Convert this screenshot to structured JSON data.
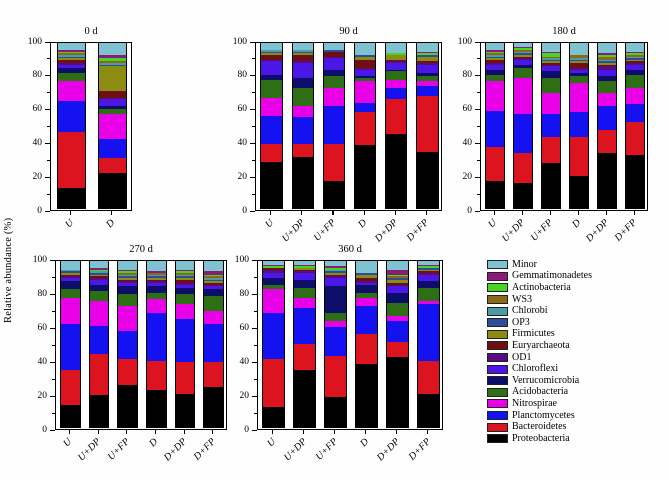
{
  "figure": {
    "ylabel": "Relative abundance (%)"
  },
  "chart_data": {
    "type": "bar",
    "stacked": true,
    "grid": false,
    "ylabel": "Relative abundance (%)",
    "ylim": [
      0,
      100
    ],
    "yticks": [
      0,
      20,
      40,
      60,
      80,
      100
    ],
    "yticks_minor": [
      10,
      30,
      50,
      70,
      90
    ],
    "legend_position": "bottom-right",
    "series_bottom_to_top": [
      "Proteobacteria",
      "Bacteroidetes",
      "Planctomycetes",
      "Nitrospirae",
      "Acidobacteria",
      "Verrucomicrobia",
      "Chloroflexi",
      "OD1",
      "Euryarchaeota",
      "Firmicutes",
      "OP3",
      "Chlorobi",
      "WS3",
      "Actinobacteria",
      "Gemmatimonadetes",
      "Minor"
    ],
    "legend_top_to_bottom": [
      "Minor",
      "Gemmatimonadetes",
      "Actinobacteria",
      "WS3",
      "Chlorobi",
      "OP3",
      "Firmicutes",
      "Euryarchaeota",
      "OD1",
      "Chloroflexi",
      "Verrucomicrobia",
      "Acidobacteria",
      "Nitrospirae",
      "Planctomycetes",
      "Bacteroidetes",
      "Proteobacteria"
    ],
    "colors": {
      "Proteobacteria": "#000000",
      "Bacteroidetes": "#dc1420",
      "Planctomycetes": "#1512f2",
      "Nitrospirae": "#e800e6",
      "Acidobacteria": "#2e6e15",
      "Verrucomicrobia": "#0d0d6a",
      "Chloroflexi": "#4a17e6",
      "OD1": "#5a0a82",
      "Euryarchaeota": "#6e1012",
      "Firmicutes": "#8c8c12",
      "OP3": "#2c4c9c",
      "Chlorobi": "#4d9ba6",
      "WS3": "#8a6a15",
      "Actinobacteria": "#46d621",
      "Gemmatimonadetes": "#8c1a78",
      "Minor": "#7fc3d3"
    },
    "panels": [
      {
        "title": "0 d",
        "bars": [
          {
            "label": "U",
            "values": [
              12,
              34,
              19,
              12,
              5,
              3,
              2,
              1,
              2,
              1,
              1,
              1,
              1,
              1,
              1,
              4
            ]
          },
          {
            "label": "D",
            "values": [
              21,
              9,
              12,
              15,
              3,
              2,
              4,
              1,
              4,
              15,
              1,
              1,
              1,
              2,
              2,
              7
            ]
          }
        ]
      },
      {
        "title": "90 d",
        "bars": [
          {
            "label": "U",
            "values": [
              28,
              11,
              17,
              11,
              11,
              3,
              8,
              1,
              3,
              1,
              1,
              1,
              0,
              0,
              0,
              4
            ]
          },
          {
            "label": "U+DP",
            "values": [
              31,
              8,
              16,
              7,
              11,
              6,
              9,
              1,
              4,
              1,
              1,
              1,
              0,
              0,
              0,
              4
            ]
          },
          {
            "label": "U+FP",
            "values": [
              16,
              23,
              23,
              11,
              7,
              4,
              7,
              1,
              3,
              0,
              1,
              0,
              0,
              0,
              0,
              4
            ]
          },
          {
            "label": "D",
            "values": [
              38,
              20,
              6,
              13,
              2,
              1,
              4,
              1,
              5,
              2,
              1,
              0,
              0,
              0,
              0,
              7
            ]
          },
          {
            "label": "D+DP",
            "values": [
              45,
              21,
              7,
              5,
              5,
              1,
              4,
              1,
              1,
              3,
              0,
              0,
              0,
              1,
              0,
              6
            ]
          },
          {
            "label": "D+FP",
            "values": [
              34,
              34,
              6,
              3,
              3,
              2,
              5,
              1,
              1,
              3,
              1,
              0,
              0,
              1,
              1,
              5
            ]
          }
        ]
      },
      {
        "title": "180 d",
        "bars": [
          {
            "label": "U",
            "values": [
              16,
              21,
              22,
              18,
              4,
              3,
              3,
              1,
              2,
              1,
              1,
              1,
              1,
              1,
              1,
              4
            ]
          },
          {
            "label": "U+DP",
            "values": [
              15,
              18,
              24,
              22,
              6,
              2,
              3,
              1,
              1,
              1,
              1,
              1,
              1,
              1,
              1,
              2
            ]
          },
          {
            "label": "U+FP",
            "values": [
              27,
              16,
              14,
              13,
              9,
              4,
              3,
              1,
              1,
              1,
              1,
              1,
              1,
              2,
              1,
              5
            ]
          },
          {
            "label": "D",
            "values": [
              19,
              24,
              15,
              18,
              4,
              2,
              2,
              1,
              3,
              1,
              1,
              1,
              2,
              0,
              0,
              7
            ]
          },
          {
            "label": "D+DP",
            "values": [
              33,
              14,
              15,
              8,
              7,
              3,
              4,
              2,
              1,
              1,
              1,
              1,
              2,
              1,
              1,
              6
            ]
          },
          {
            "label": "D+FP",
            "values": [
              32,
              20,
              11,
              10,
              8,
              3,
              3,
              1,
              1,
              1,
              1,
              1,
              1,
              1,
              1,
              5
            ]
          }
        ]
      },
      {
        "title": "270 d",
        "bars": [
          {
            "label": "U",
            "values": [
              13,
              21,
              28,
              16,
              5,
              5,
              2,
              1,
              1,
              1,
              1,
              1,
              0,
              0,
              0,
              5
            ]
          },
          {
            "label": "U+DP",
            "values": [
              19,
              25,
              17,
              15,
              6,
              4,
              3,
              1,
              1,
              1,
              1,
              1,
              0,
              1,
              1,
              4
            ]
          },
          {
            "label": "U+FP",
            "values": [
              25,
              16,
              17,
              15,
              7,
              5,
              2,
              1,
              1,
              1,
              1,
              1,
              1,
              1,
              1,
              5
            ]
          },
          {
            "label": "D",
            "values": [
              22,
              18,
              29,
              8,
              4,
              4,
              2,
              1,
              1,
              1,
              1,
              1,
              1,
              0,
              1,
              6
            ]
          },
          {
            "label": "D+DP",
            "values": [
              20,
              19,
              26,
              9,
              6,
              4,
              2,
              1,
              2,
              1,
              1,
              1,
              1,
              1,
              1,
              5
            ]
          },
          {
            "label": "D+FP",
            "values": [
              24,
              15,
              23,
              8,
              9,
              4,
              2,
              1,
              1,
              1,
              1,
              1,
              1,
              1,
              2,
              6
            ]
          }
        ]
      },
      {
        "title": "360 d",
        "bars": [
          {
            "label": "U",
            "values": [
              12,
              29,
              28,
              14,
              3,
              4,
              3,
              2,
              1,
              0,
              0,
              0,
              0,
              1,
              1,
              2
            ]
          },
          {
            "label": "U+DP",
            "values": [
              34,
              16,
              22,
              6,
              6,
              5,
              4,
              1,
              1,
              1,
              0,
              0,
              0,
              1,
              1,
              2
            ]
          },
          {
            "label": "U+FP",
            "values": [
              18,
              25,
              17,
              4,
              5,
              16,
              5,
              1,
              1,
              1,
              1,
              1,
              0,
              1,
              1,
              3
            ]
          },
          {
            "label": "D",
            "values": [
              38,
              18,
              17,
              5,
              3,
              5,
              1,
              1,
              2,
              2,
              1,
              0,
              0,
              0,
              0,
              7
            ]
          },
          {
            "label": "D+DP",
            "values": [
              42,
              9,
              13,
              3,
              8,
              6,
              4,
              1,
              1,
              2,
              1,
              0,
              1,
              1,
              3,
              5
            ]
          },
          {
            "label": "D+FP",
            "values": [
              20,
              20,
              34,
              2,
              8,
              4,
              4,
              1,
              1,
              1,
              1,
              0,
              0,
              1,
              1,
              2
            ]
          }
        ]
      }
    ]
  }
}
